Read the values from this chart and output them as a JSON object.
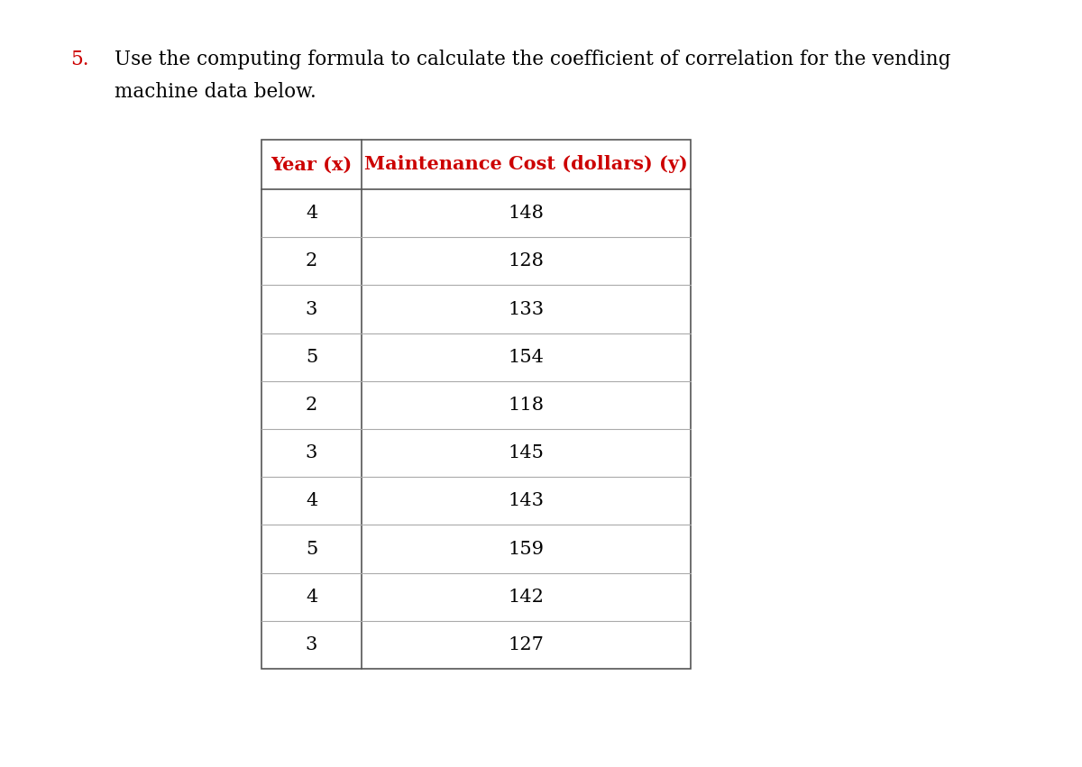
{
  "title_number": "5.",
  "title_line1": "Use the computing formula to calculate the coefficient of correlation for the vending",
  "title_line2": "machine data below.",
  "col1_header": "Year (x)",
  "col2_header": "Maintenance Cost (dollars) (y)",
  "header_color": "#cc0000",
  "data_x": [
    4,
    2,
    3,
    5,
    2,
    3,
    4,
    5,
    4,
    3
  ],
  "data_y": [
    148,
    128,
    133,
    154,
    118,
    145,
    143,
    159,
    142,
    127
  ],
  "bg_color": "#ffffff",
  "text_color": "#000000",
  "table_border_color": "#888888",
  "font_size_title": 15.5,
  "font_size_header": 15.0,
  "font_size_data": 15.0,
  "number_color": "#cc0000",
  "outer_border_color": "#555555",
  "inner_line_color": "#aaaaaa"
}
